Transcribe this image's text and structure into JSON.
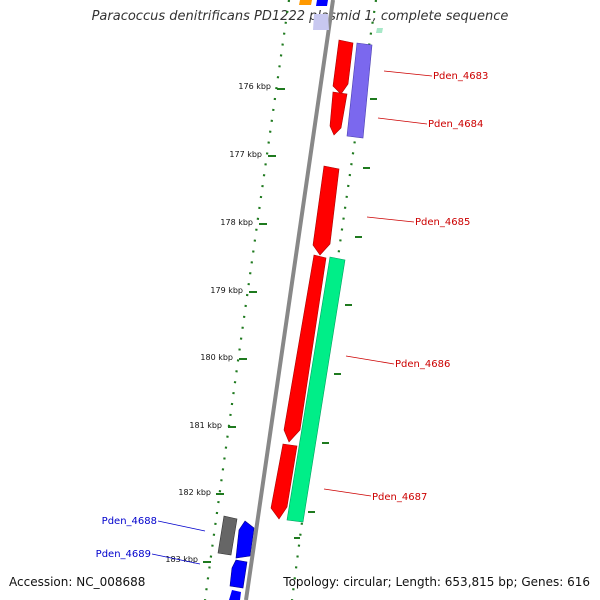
{
  "title": "Paracoccus denitrificans PD1222 plasmid 1, complete sequence",
  "footer": {
    "accession": "Accession: NC_008688",
    "summary": "Topology: circular; Length: 653,815 bp; Genes: 616"
  },
  "ruler": {
    "ticks": [
      "176 kbp",
      "177 kbp",
      "178 kbp",
      "179 kbp",
      "180 kbp",
      "181 kbp",
      "182 kbp",
      "183 kbp"
    ]
  },
  "genes": [
    {
      "label": "Pden_4683",
      "color": "#cc0000"
    },
    {
      "label": "Pden_4684",
      "color": "#cc0000"
    },
    {
      "label": "Pden_4685",
      "color": "#cc0000"
    },
    {
      "label": "Pden_4686",
      "color": "#cc0000"
    },
    {
      "label": "Pden_4687",
      "color": "#cc0000"
    },
    {
      "label": "Pden_4688",
      "color": "#0000cc"
    },
    {
      "label": "Pden_4689",
      "color": "#0000cc"
    }
  ],
  "colors": {
    "red_feature": "#ff0000",
    "purple_feature": "#7b68ee",
    "green_feature": "#00ee88",
    "blue_feature": "#0000ff",
    "grey_feature": "#666666",
    "orange_feature": "#ff9900",
    "backbone": "#888888",
    "ruler_green": "#1f7a1f"
  }
}
